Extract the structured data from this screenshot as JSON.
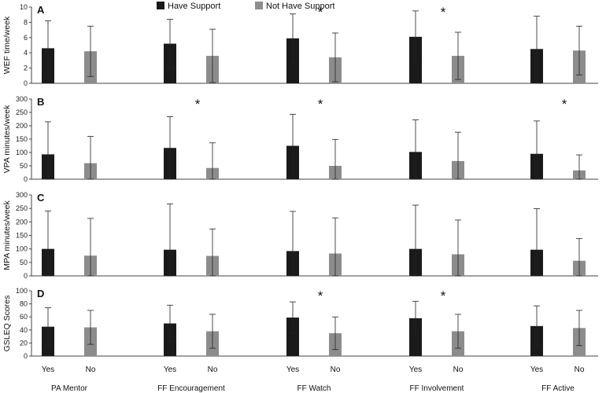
{
  "legend": [
    {
      "label": "Have Support",
      "color": "#1a1a1a"
    },
    {
      "label": "Not Have Support",
      "color": "#8c8c8c"
    }
  ],
  "bar_colors": {
    "have": "#1a1a1a",
    "not_have": "#8c8c8c"
  },
  "categories": [
    "PA Mentor",
    "FF Encouragement",
    "FF Watch",
    "FF Involvement",
    "FF Active"
  ],
  "yes_no_labels": [
    "Yes",
    "No"
  ],
  "chart_data": [
    {
      "type": "bar",
      "panel": "A",
      "ylabel": "WEF time/week",
      "ylim": [
        0,
        10
      ],
      "yticks": [
        0,
        2,
        4,
        6,
        8,
        10
      ],
      "categories": [
        "PA Mentor",
        "FF Encouragement",
        "FF Watch",
        "FF Involvement",
        "FF Active"
      ],
      "series": [
        {
          "name": "Have Support",
          "values": [
            4.6,
            5.2,
            5.9,
            6.1,
            4.5
          ],
          "errors": [
            3.6,
            3.2,
            3.2,
            3.4,
            4.3
          ]
        },
        {
          "name": "Not Have Support",
          "values": [
            4.2,
            3.6,
            3.4,
            3.6,
            4.3
          ],
          "errors": [
            3.3,
            3.5,
            3.2,
            3.1,
            3.2
          ]
        }
      ],
      "significant": [
        false,
        false,
        true,
        true,
        false
      ]
    },
    {
      "type": "bar",
      "panel": "B",
      "ylabel": "VPA minutes/week",
      "ylim": [
        0,
        300
      ],
      "yticks": [
        0,
        50,
        100,
        150,
        200,
        250,
        300
      ],
      "categories": [
        "PA Mentor",
        "FF Encouragement",
        "FF Watch",
        "FF Involvement",
        "FF Active"
      ],
      "series": [
        {
          "name": "Have Support",
          "values": [
            93,
            117,
            125,
            102,
            95
          ],
          "errors": [
            122,
            117,
            118,
            120,
            123
          ]
        },
        {
          "name": "Not Have Support",
          "values": [
            60,
            42,
            50,
            68,
            33
          ],
          "errors": [
            100,
            94,
            99,
            108,
            58
          ]
        }
      ],
      "significant": [
        false,
        true,
        true,
        false,
        true
      ]
    },
    {
      "type": "bar",
      "panel": "C",
      "ylabel": "MPA minutes/week",
      "ylim": [
        0,
        300
      ],
      "yticks": [
        0,
        50,
        100,
        150,
        200,
        250,
        300
      ],
      "categories": [
        "PA Mentor",
        "FF Encouragement",
        "FF Watch",
        "FF Involvement",
        "FF Active"
      ],
      "series": [
        {
          "name": "Have Support",
          "values": [
            100,
            97,
            92,
            100,
            97
          ],
          "errors": [
            140,
            170,
            147,
            162,
            152
          ]
        },
        {
          "name": "Not Have Support",
          "values": [
            75,
            74,
            83,
            80,
            56
          ],
          "errors": [
            138,
            100,
            132,
            127,
            82
          ]
        }
      ],
      "significant": [
        false,
        false,
        false,
        false,
        false
      ]
    },
    {
      "type": "bar",
      "panel": "D",
      "ylabel": "GSLEQ Scores",
      "ylim": [
        0,
        100
      ],
      "yticks": [
        0,
        20,
        40,
        60,
        80,
        100
      ],
      "categories": [
        "PA Mentor",
        "FF Encouragement",
        "FF Watch",
        "FF Involvement",
        "FF Active"
      ],
      "series": [
        {
          "name": "Have Support",
          "values": [
            45,
            50,
            59,
            58,
            46
          ],
          "errors": [
            29,
            28,
            24,
            26,
            31
          ]
        },
        {
          "name": "Not Have Support",
          "values": [
            44,
            38,
            35,
            38,
            43
          ],
          "errors": [
            26,
            26,
            25,
            26,
            27
          ]
        }
      ],
      "significant": [
        false,
        false,
        true,
        true,
        false
      ]
    }
  ]
}
